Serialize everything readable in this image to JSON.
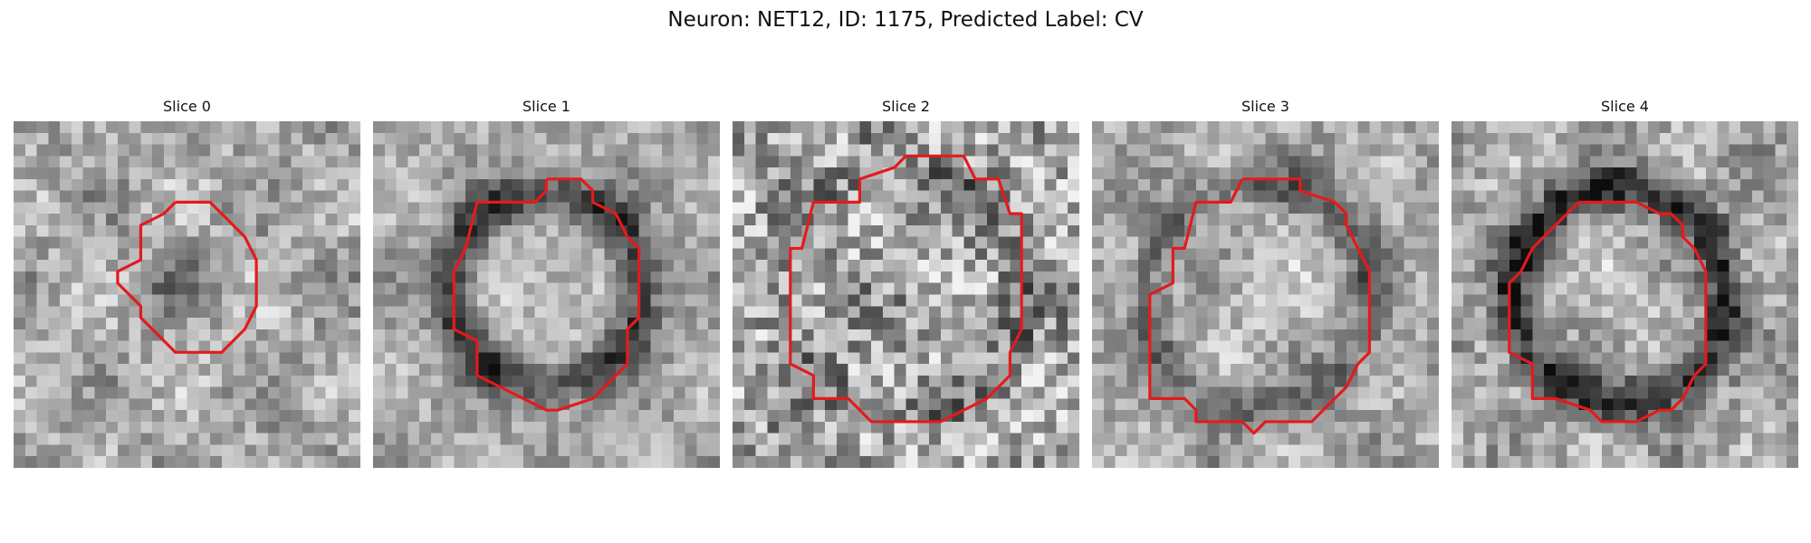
{
  "figure": {
    "title": "Neuron: NET12, ID: 1175, Predicted Label: CV"
  },
  "colors": {
    "contour": "#e41a1c",
    "colormap": "grayscale"
  },
  "slices": [
    {
      "label": "Slice 0"
    },
    {
      "label": "Slice 1"
    },
    {
      "label": "Slice 2"
    },
    {
      "label": "Slice 3"
    },
    {
      "label": "Slice 4"
    }
  ]
}
